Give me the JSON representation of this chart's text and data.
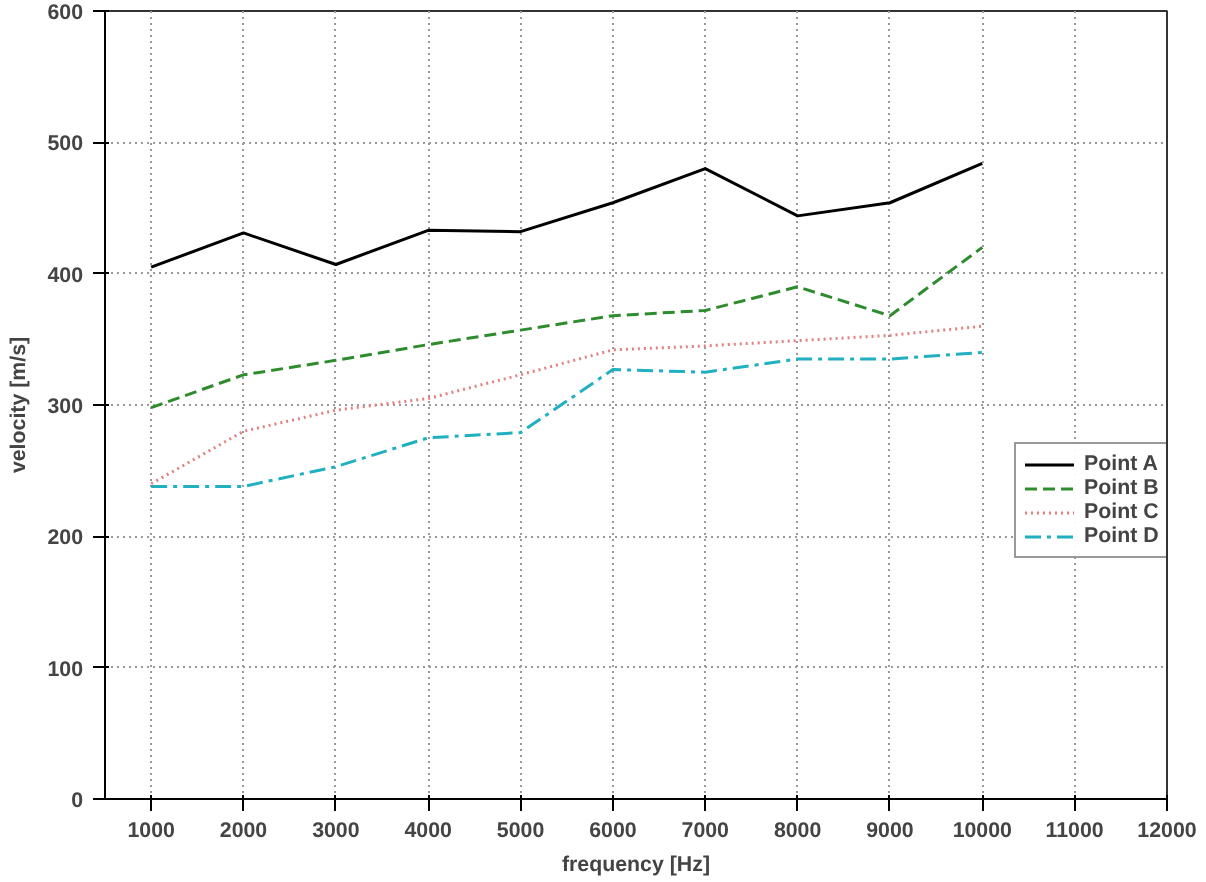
{
  "chart_data": {
    "type": "line",
    "xlabel": "frequency [Hz]",
    "ylabel": "velocity [m/s]",
    "x": [
      1000,
      2000,
      3000,
      4000,
      5000,
      6000,
      7000,
      8000,
      9000,
      10000
    ],
    "xlim": [
      500,
      12000
    ],
    "xticks": [
      1000,
      2000,
      3000,
      4000,
      5000,
      6000,
      7000,
      8000,
      9000,
      10000,
      11000,
      12000
    ],
    "ylim": [
      0,
      600
    ],
    "yticks": [
      0,
      100,
      200,
      300,
      400,
      500,
      600
    ],
    "grid": true,
    "legend": "right",
    "series": [
      {
        "name": "Point A",
        "color": "#000000",
        "line_style": "solid",
        "values": [
          405,
          431,
          407,
          433,
          432,
          454,
          480,
          444,
          454,
          484
        ]
      },
      {
        "name": "Point B",
        "color": "#2e8b2e",
        "line_style": "dashed",
        "values": [
          298,
          323,
          334,
          346,
          357,
          368,
          372,
          390,
          368,
          420
        ]
      },
      {
        "name": "Point C",
        "color": "#e08080",
        "line_style": "dotted",
        "values": [
          240,
          280,
          296,
          305,
          323,
          342,
          345,
          349,
          353,
          360
        ]
      },
      {
        "name": "Point D",
        "color": "#20b0c0",
        "line_style": "dashdot",
        "values": [
          238,
          238,
          253,
          275,
          279,
          327,
          325,
          335,
          335,
          340
        ]
      }
    ]
  }
}
